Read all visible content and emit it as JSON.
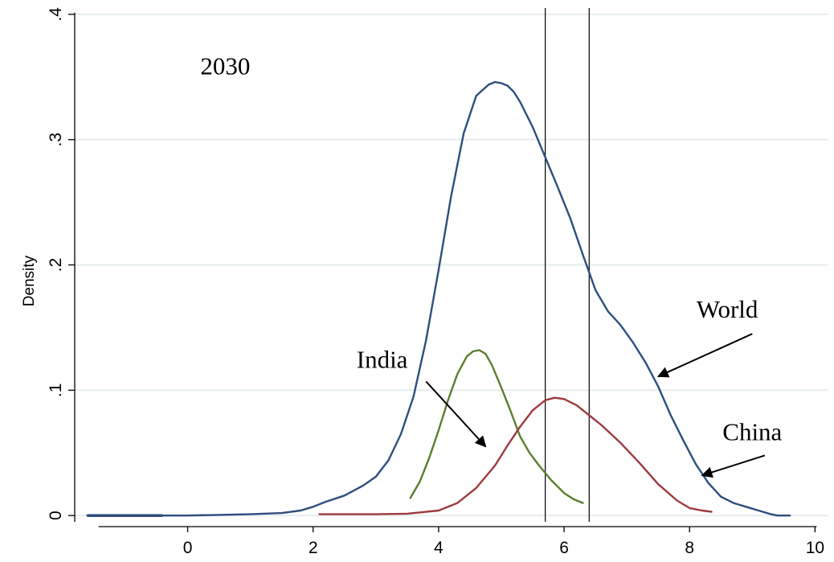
{
  "chart_data": {
    "type": "line",
    "title": "",
    "xlabel": "",
    "ylabel": "Density",
    "xlim": [
      -1.8,
      10.2
    ],
    "ylim": [
      -0.005,
      0.405
    ],
    "x_ticks": [
      0,
      2,
      4,
      6,
      8,
      10
    ],
    "x_tick_labels": [
      "0",
      "2",
      "4",
      "6",
      "8",
      "10"
    ],
    "y_ticks": [
      0,
      0.1,
      0.2,
      0.3,
      0.4
    ],
    "y_tick_labels": [
      "0",
      ".1",
      ".2",
      ".3",
      ".4"
    ],
    "grid": "horizontal",
    "vertical_lines": [
      5.7,
      6.4
    ],
    "annotations": [
      {
        "text": "2030",
        "x": 0.6,
        "y": 0.352
      },
      {
        "text": "India",
        "x": 3.1,
        "y": 0.118,
        "arrow_from": [
          3.8,
          0.107
        ],
        "arrow_to": [
          4.75,
          0.055
        ]
      },
      {
        "text": "World",
        "x": 8.6,
        "y": 0.158,
        "arrow_from": [
          9.0,
          0.145
        ],
        "arrow_to": [
          7.5,
          0.111
        ]
      },
      {
        "text": "China",
        "x": 9.0,
        "y": 0.06,
        "arrow_from": [
          9.2,
          0.048
        ],
        "arrow_to": [
          8.2,
          0.032
        ]
      }
    ],
    "series": [
      {
        "color": "#2e4e7e",
        "x": [
          -1.6,
          -1.0,
          -0.4,
          0.0,
          0.5,
          1.0,
          1.5,
          1.8,
          2.0,
          2.2,
          2.5,
          2.8,
          3.0,
          3.2,
          3.4,
          3.6,
          3.8,
          4.0,
          4.2,
          4.4,
          4.6,
          4.8,
          4.9,
          5.0,
          5.1,
          5.2,
          5.3,
          5.5,
          5.7,
          5.9,
          6.1,
          6.3,
          6.5,
          6.7,
          6.9,
          7.1,
          7.3,
          7.5,
          7.7,
          7.9,
          8.1,
          8.3,
          8.5,
          8.7,
          8.9,
          9.1,
          9.3,
          9.4,
          9.6
        ],
        "y": [
          0.0,
          0.0,
          0.0,
          0.0,
          0.0005,
          0.001,
          0.002,
          0.004,
          0.007,
          0.011,
          0.016,
          0.024,
          0.031,
          0.044,
          0.065,
          0.095,
          0.14,
          0.196,
          0.255,
          0.305,
          0.335,
          0.344,
          0.346,
          0.345,
          0.343,
          0.338,
          0.33,
          0.31,
          0.286,
          0.262,
          0.237,
          0.208,
          0.18,
          0.163,
          0.152,
          0.138,
          0.122,
          0.103,
          0.08,
          0.06,
          0.041,
          0.026,
          0.015,
          0.01,
          0.007,
          0.004,
          0.001,
          0.0,
          0.0
        ]
      },
      {
        "color": "#5d7d2e",
        "x": [
          3.55,
          3.7,
          3.85,
          4.0,
          4.15,
          4.3,
          4.45,
          4.55,
          4.65,
          4.75,
          4.85,
          5.0,
          5.15,
          5.3,
          5.45,
          5.6,
          5.8,
          6.0,
          6.15,
          6.3
        ],
        "y": [
          0.014,
          0.027,
          0.046,
          0.068,
          0.092,
          0.113,
          0.127,
          0.131,
          0.132,
          0.129,
          0.12,
          0.102,
          0.083,
          0.063,
          0.05,
          0.04,
          0.028,
          0.018,
          0.013,
          0.01
        ]
      },
      {
        "color": "#9e3a3e",
        "x": [
          2.1,
          2.5,
          3.0,
          3.5,
          4.0,
          4.3,
          4.6,
          4.9,
          5.1,
          5.3,
          5.5,
          5.7,
          5.85,
          6.0,
          6.2,
          6.4,
          6.6,
          6.9,
          7.2,
          7.5,
          7.8,
          8.0,
          8.2,
          8.35
        ],
        "y": [
          0.001,
          0.001,
          0.001,
          0.0015,
          0.004,
          0.01,
          0.022,
          0.04,
          0.056,
          0.071,
          0.084,
          0.092,
          0.094,
          0.093,
          0.088,
          0.08,
          0.072,
          0.058,
          0.042,
          0.025,
          0.012,
          0.006,
          0.004,
          0.003
        ]
      }
    ]
  }
}
